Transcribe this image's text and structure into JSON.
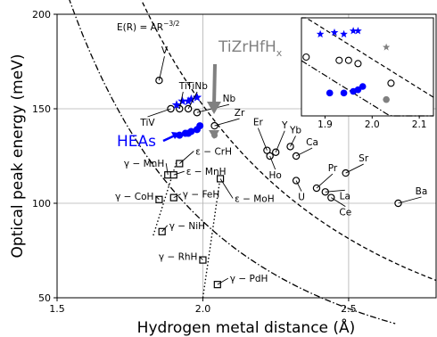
{
  "chart_data": {
    "type": "scatter",
    "xlabel": "Hydrogen metal distance (Å)",
    "ylabel": "Optical peak energy (meV)",
    "xlim": [
      1.5,
      2.8
    ],
    "ylim": [
      50,
      200
    ],
    "x_ticks": [
      1.5,
      2.0,
      2.5
    ],
    "y_ticks": [
      50,
      100,
      150,
      200
    ],
    "grid": true,
    "formula_label": "E(R) = AR",
    "formula_exponent": "−3/2",
    "annotations": {
      "heas": "HEAs",
      "tizrhfh_main": "TiZrHfH",
      "tizrhfh_sub": "x"
    },
    "colors": {
      "heas": "#0000ff",
      "tizrhfh": "#808080",
      "materials": "#000000"
    },
    "fcc_hydrides": [
      {
        "label": "V",
        "x": 1.85,
        "y": 165
      },
      {
        "label": "Ti",
        "x": 1.92,
        "y": 150
      },
      {
        "label": "TiV",
        "x": 1.89,
        "y": 150
      },
      {
        "label": "TiNb",
        "x": 1.95,
        "y": 150
      },
      {
        "label": "Nb",
        "x": 1.98,
        "y": 148
      },
      {
        "label": "Zr",
        "x": 2.04,
        "y": 141
      },
      {
        "label": "Er",
        "x": 2.22,
        "y": 128
      },
      {
        "label": "Ho",
        "x": 2.23,
        "y": 125
      },
      {
        "label": "Y",
        "x": 2.25,
        "y": 127
      },
      {
        "label": "Yb",
        "x": 2.3,
        "y": 130
      },
      {
        "label": "Ca",
        "x": 2.32,
        "y": 125
      },
      {
        "label": "U",
        "x": 2.32,
        "y": 112
      },
      {
        "label": "Pr",
        "x": 2.39,
        "y": 108
      },
      {
        "label": "Sr",
        "x": 2.49,
        "y": 116
      },
      {
        "label": "La",
        "x": 2.42,
        "y": 106
      },
      {
        "label": "Ce",
        "x": 2.44,
        "y": 103
      },
      {
        "label": "Ba",
        "x": 2.67,
        "y": 100
      }
    ],
    "bcc_hydrides": [
      {
        "label": "ε − CrH",
        "x": 1.92,
        "y": 121
      },
      {
        "label": "γ − MnH",
        "x": 1.88,
        "y": 115
      },
      {
        "label": "ε − MnH",
        "x": 1.9,
        "y": 115
      },
      {
        "label": "γ − CoH",
        "x": 1.85,
        "y": 102
      },
      {
        "label": "γ − FeH",
        "x": 1.9,
        "y": 103
      },
      {
        "label": "ε − MoH",
        "x": 2.06,
        "y": 113
      },
      {
        "label": "γ − NiH",
        "x": 1.86,
        "y": 85
      },
      {
        "label": "γ − RhH",
        "x": 2.0,
        "y": 70
      },
      {
        "label": "γ − PdH",
        "x": 2.05,
        "y": 57
      }
    ],
    "heas_points": [
      {
        "x": 1.92,
        "y": 136
      },
      {
        "x": 1.94,
        "y": 137
      },
      {
        "x": 1.95,
        "y": 137
      },
      {
        "x": 1.96,
        "y": 138
      },
      {
        "x": 1.98,
        "y": 139
      },
      {
        "x": 1.99,
        "y": 141
      }
    ],
    "heas_stars": [
      {
        "x": 1.91,
        "y": 152
      },
      {
        "x": 1.93,
        "y": 154
      },
      {
        "x": 1.95,
        "y": 154
      },
      {
        "x": 1.96,
        "y": 155
      },
      {
        "x": 1.98,
        "y": 156
      }
    ],
    "tizrhfh": {
      "x": 2.04,
      "y": 136
    },
    "inset": {
      "xlim": [
        1.85,
        2.13
      ],
      "x_ticks": [
        1.9,
        2.0,
        2.1
      ],
      "y_range": [
        130,
        160
      ],
      "open_circles": [
        {
          "x": 1.86,
          "y": 148
        },
        {
          "x": 1.93,
          "y": 147
        },
        {
          "x": 1.95,
          "y": 147
        },
        {
          "x": 1.97,
          "y": 146
        },
        {
          "x": 2.04,
          "y": 140
        }
      ],
      "blue_stars": [
        {
          "x": 1.89,
          "y": 155
        },
        {
          "x": 1.92,
          "y": 155.5
        },
        {
          "x": 1.94,
          "y": 155
        },
        {
          "x": 1.96,
          "y": 156
        },
        {
          "x": 1.97,
          "y": 156
        }
      ],
      "blue_points": [
        {
          "x": 1.91,
          "y": 137
        },
        {
          "x": 1.94,
          "y": 137
        },
        {
          "x": 1.96,
          "y": 137.5
        },
        {
          "x": 1.97,
          "y": 138
        },
        {
          "x": 1.98,
          "y": 139
        }
      ],
      "gray_star": {
        "x": 2.03,
        "y": 151
      },
      "gray_point": {
        "x": 2.03,
        "y": 135
      }
    }
  }
}
